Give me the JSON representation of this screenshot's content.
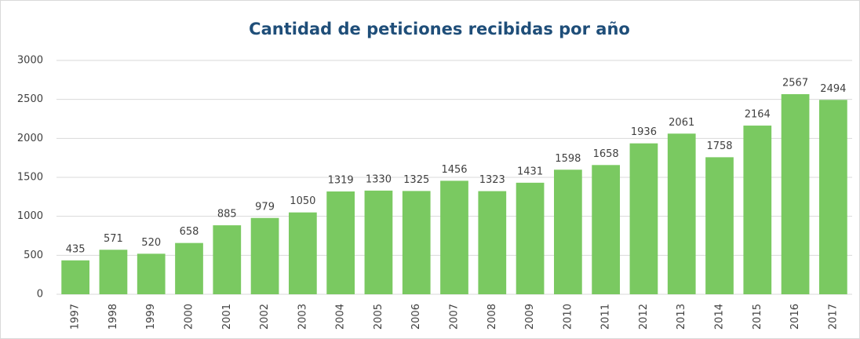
{
  "chart_data": {
    "type": "bar",
    "title": "Cantidad de peticiones recibidas por año",
    "categories": [
      "1997",
      "1998",
      "1999",
      "2000",
      "2001",
      "2002",
      "2003",
      "2004",
      "2005",
      "2006",
      "2007",
      "2008",
      "2009",
      "2010",
      "2011",
      "2012",
      "2013",
      "2014",
      "2015",
      "2016",
      "2017"
    ],
    "values": [
      435,
      571,
      520,
      658,
      885,
      979,
      1050,
      1319,
      1330,
      1325,
      1456,
      1323,
      1431,
      1598,
      1658,
      1936,
      2061,
      1758,
      2164,
      2567,
      2494
    ],
    "color": "#7ac961",
    "ylim": [
      0,
      3000
    ],
    "yticks": [
      0,
      500,
      1000,
      1500,
      2000,
      2500,
      3000
    ],
    "grid": true
  }
}
